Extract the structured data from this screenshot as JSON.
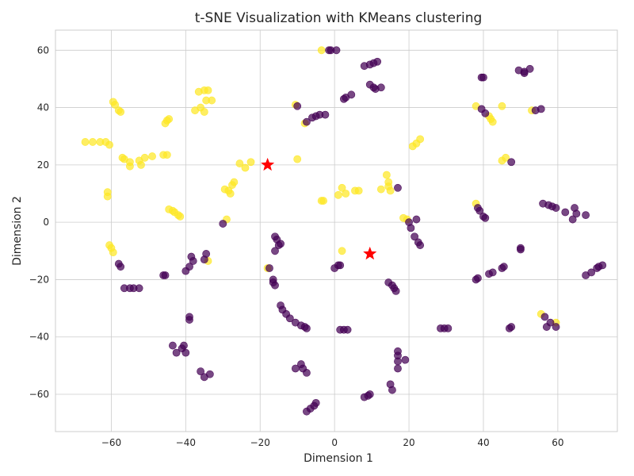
{
  "chart_data": {
    "type": "scatter",
    "title": "t-SNE Visualization with KMeans clustering",
    "xlabel": "Dimension 1",
    "ylabel": "Dimension 2",
    "xlim": [
      -75,
      76
    ],
    "ylim": [
      -73,
      67
    ],
    "xticks": [
      -60,
      -40,
      -20,
      0,
      20,
      40,
      60
    ],
    "yticks": [
      -60,
      -40,
      -20,
      0,
      20,
      40,
      60
    ],
    "grid": true,
    "colors": {
      "cluster_0": "#440154",
      "cluster_1": "#fde725",
      "centroid": "#ff0000"
    },
    "series": [
      {
        "cluster": 1,
        "color": "#fde725",
        "points": [
          [
            -67,
            28
          ],
          [
            -65,
            28
          ],
          [
            -63,
            28
          ],
          [
            -61.5,
            28
          ],
          [
            -60.5,
            27
          ],
          [
            -59.5,
            42
          ],
          [
            -59,
            41
          ],
          [
            -58,
            39
          ],
          [
            -57.5,
            38.5
          ],
          [
            -57,
            22.5
          ],
          [
            -56.5,
            22
          ],
          [
            -55,
            21
          ],
          [
            -55,
            19.5
          ],
          [
            -52.5,
            21.5
          ],
          [
            -52,
            20
          ],
          [
            -51,
            22.5
          ],
          [
            -49,
            23
          ],
          [
            -46,
            23.5
          ],
          [
            -45,
            23.5
          ],
          [
            -45.5,
            34.5
          ],
          [
            -45,
            35.5
          ],
          [
            -44.5,
            36
          ],
          [
            -37.5,
            39
          ],
          [
            -36.5,
            45.5
          ],
          [
            -36,
            40
          ],
          [
            -35,
            46
          ],
          [
            -35,
            38.5
          ],
          [
            -34.5,
            42.5
          ],
          [
            -34,
            46
          ],
          [
            -33,
            42.5
          ],
          [
            -44.5,
            4.5
          ],
          [
            -43.5,
            4
          ],
          [
            -43,
            3.5
          ],
          [
            -42,
            2.5
          ],
          [
            -41.5,
            2
          ],
          [
            -61,
            9
          ],
          [
            -61,
            10.5
          ],
          [
            -60.5,
            -8
          ],
          [
            -60,
            -9
          ],
          [
            -59.5,
            -10.5
          ],
          [
            -29.5,
            11.5
          ],
          [
            -29,
            1
          ],
          [
            -28.5,
            11
          ],
          [
            -28,
            10
          ],
          [
            -27.5,
            13
          ],
          [
            -27,
            14
          ],
          [
            -25.5,
            20.5
          ],
          [
            -24,
            19
          ],
          [
            -22.5,
            21
          ],
          [
            -18,
            -16
          ],
          [
            -34,
            -13.5
          ],
          [
            -10.5,
            41
          ],
          [
            -10,
            22
          ],
          [
            -8,
            34.5
          ],
          [
            -3.5,
            60
          ],
          [
            -3.5,
            7.5
          ],
          [
            -3,
            7.5
          ],
          [
            1,
            9.5
          ],
          [
            2,
            12
          ],
          [
            2,
            -10
          ],
          [
            3,
            10
          ],
          [
            5.5,
            11
          ],
          [
            6.5,
            11
          ],
          [
            12.5,
            11.5
          ],
          [
            14,
            16.5
          ],
          [
            14.5,
            14
          ],
          [
            14.5,
            12.5
          ],
          [
            15,
            11
          ],
          [
            18.5,
            1.5
          ],
          [
            19.5,
            1
          ],
          [
            21,
            26.5
          ],
          [
            22,
            27.5
          ],
          [
            23,
            29
          ],
          [
            38,
            40.5
          ],
          [
            38,
            6.5
          ],
          [
            41.5,
            37
          ],
          [
            42,
            36
          ],
          [
            42.5,
            35
          ],
          [
            45,
            21.5
          ],
          [
            45,
            40.5
          ],
          [
            46,
            22.5
          ],
          [
            53,
            39
          ],
          [
            55.5,
            -32
          ],
          [
            59.5,
            -35
          ]
        ]
      },
      {
        "cluster": 0,
        "color": "#440154",
        "points": [
          [
            -58,
            -14.5
          ],
          [
            -57.5,
            -15.5
          ],
          [
            -56.5,
            -23
          ],
          [
            -55,
            -23
          ],
          [
            -54,
            -23
          ],
          [
            -52.5,
            -23
          ],
          [
            -46,
            -18.5
          ],
          [
            -45.5,
            -18.5
          ],
          [
            -40,
            -17
          ],
          [
            -39,
            -15.5
          ],
          [
            -38,
            -13.5
          ],
          [
            -38.5,
            -12
          ],
          [
            -35,
            -13
          ],
          [
            -34.5,
            -11
          ],
          [
            -39,
            -33
          ],
          [
            -39,
            -34
          ],
          [
            -43.5,
            -43
          ],
          [
            -42.5,
            -45.5
          ],
          [
            -41,
            -44
          ],
          [
            -40.5,
            -43
          ],
          [
            -40,
            -45.5
          ],
          [
            -36,
            -52
          ],
          [
            -35,
            -54
          ],
          [
            -33.5,
            -53
          ],
          [
            -30,
            -0.5
          ],
          [
            -17.5,
            -16
          ],
          [
            -16.5,
            -20
          ],
          [
            -16.5,
            -21
          ],
          [
            -16,
            -22
          ],
          [
            -16,
            -10
          ],
          [
            -16,
            -5
          ],
          [
            -15.5,
            -6
          ],
          [
            -15,
            -8
          ],
          [
            -14.5,
            -7.5
          ],
          [
            -14.5,
            -29
          ],
          [
            -14,
            -30.5
          ],
          [
            -13,
            -32
          ],
          [
            -12,
            -33.5
          ],
          [
            -10.5,
            -35
          ],
          [
            -9,
            -36
          ],
          [
            -8,
            -36.5
          ],
          [
            -7.5,
            -37
          ],
          [
            -10.5,
            -51
          ],
          [
            -9,
            -49.5
          ],
          [
            -8.5,
            -51
          ],
          [
            -7.5,
            -52.5
          ],
          [
            -7.5,
            -66
          ],
          [
            -6.5,
            -65
          ],
          [
            -5.5,
            -64
          ],
          [
            -5,
            -63
          ],
          [
            -10,
            40.5
          ],
          [
            -7.5,
            35
          ],
          [
            -6,
            36.5
          ],
          [
            -5,
            37
          ],
          [
            -4,
            37.5
          ],
          [
            -2.5,
            37.5
          ],
          [
            -1.5,
            60
          ],
          [
            -1,
            60
          ],
          [
            0.5,
            60
          ],
          [
            0,
            -16
          ],
          [
            1,
            -15
          ],
          [
            1.5,
            -15
          ],
          [
            1.5,
            -37.5
          ],
          [
            2.5,
            -37.5
          ],
          [
            3.5,
            -37.5
          ],
          [
            2.5,
            43
          ],
          [
            3,
            43.5
          ],
          [
            4.5,
            44.5
          ],
          [
            8,
            54.5
          ],
          [
            9.5,
            55
          ],
          [
            10.5,
            55.5
          ],
          [
            11.5,
            56
          ],
          [
            9.5,
            48
          ],
          [
            10.5,
            47
          ],
          [
            11,
            46.5
          ],
          [
            12.5,
            47
          ],
          [
            8,
            -61
          ],
          [
            9,
            -60.5
          ],
          [
            9.5,
            -60
          ],
          [
            14.5,
            -21
          ],
          [
            15.5,
            -22
          ],
          [
            16,
            -23
          ],
          [
            16.5,
            -24
          ],
          [
            17,
            12
          ],
          [
            17,
            -45
          ],
          [
            17,
            -46.5
          ],
          [
            17,
            -48.5
          ],
          [
            17,
            -51
          ],
          [
            19,
            -48
          ],
          [
            15,
            -56.5
          ],
          [
            15.5,
            -58.5
          ],
          [
            20,
            0
          ],
          [
            20.5,
            -2
          ],
          [
            21.5,
            -5
          ],
          [
            22,
            1
          ],
          [
            22.5,
            -7
          ],
          [
            23,
            -8
          ],
          [
            28.5,
            -37
          ],
          [
            29.5,
            -37
          ],
          [
            30.5,
            -37
          ],
          [
            38,
            -20
          ],
          [
            38.5,
            -19.5
          ],
          [
            38.5,
            5
          ],
          [
            39,
            4
          ],
          [
            39.5,
            50.5
          ],
          [
            40,
            50.5
          ],
          [
            39.5,
            39.5
          ],
          [
            40.5,
            38
          ],
          [
            40,
            2
          ],
          [
            40.5,
            1.5
          ],
          [
            41.5,
            -18
          ],
          [
            42.5,
            -17.5
          ],
          [
            45,
            -16
          ],
          [
            45.5,
            -15.5
          ],
          [
            47,
            -37
          ],
          [
            47.5,
            -36.5
          ],
          [
            47.5,
            21
          ],
          [
            49.5,
            53
          ],
          [
            50,
            -9
          ],
          [
            50,
            -9.5
          ],
          [
            51,
            52
          ],
          [
            51,
            52.5
          ],
          [
            52.5,
            53.5
          ],
          [
            54,
            39
          ],
          [
            55.5,
            39.5
          ],
          [
            56,
            6.5
          ],
          [
            57.5,
            6
          ],
          [
            58.5,
            5.5
          ],
          [
            59.5,
            5
          ],
          [
            56.5,
            -33
          ],
          [
            57,
            -36.5
          ],
          [
            58,
            -35
          ],
          [
            59.5,
            -36.5
          ],
          [
            62,
            3.5
          ],
          [
            64,
            1
          ],
          [
            64.5,
            5
          ],
          [
            65,
            3
          ],
          [
            67.5,
            2.5
          ],
          [
            67.5,
            -18.5
          ],
          [
            69,
            -17.5
          ],
          [
            70.5,
            -16
          ],
          [
            71,
            -15.5
          ],
          [
            72,
            -15
          ]
        ]
      }
    ],
    "centroids": [
      [
        -18,
        20
      ],
      [
        9.5,
        -11
      ]
    ]
  }
}
